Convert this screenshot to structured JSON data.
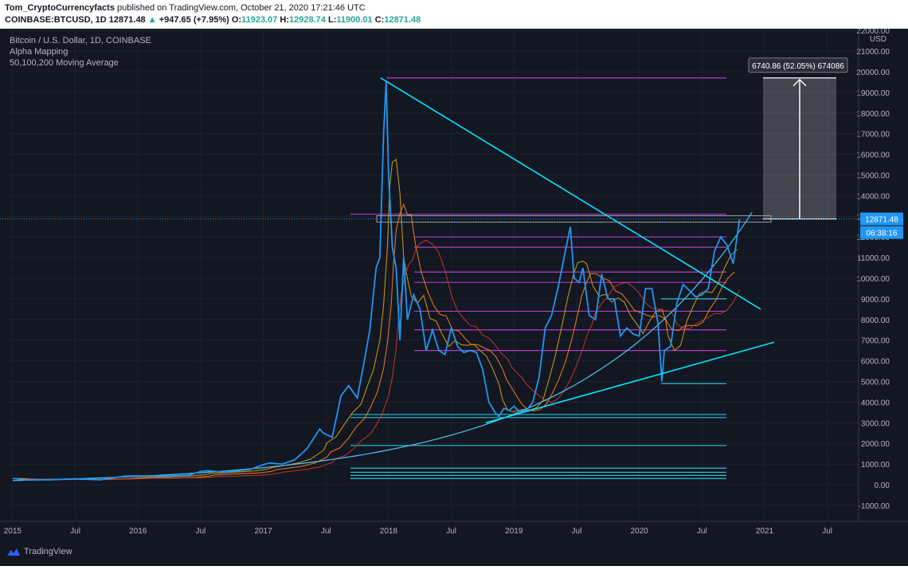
{
  "header": {
    "author": "Tom_CryptoCurrencyfacts",
    "published": "published on TradingView.com, October 21, 2020 17:21:46 UTC",
    "symbol": "COINBASE:BTCUSD, 1D",
    "price": "12871.48",
    "change": "+947.65 (+7.95%)",
    "open_label": "O:",
    "open": "11923.07",
    "high_label": "H:",
    "high": "12928.74",
    "low_label": "L:",
    "low": "11900.01",
    "close_label": "C:",
    "close": "12871.48"
  },
  "legend": {
    "title": "Bitcoin / U.S. Dollar, 1D, COINBASE",
    "indicator1": "Alpha Mapping",
    "indicator2": "50,100,200 Moving Average"
  },
  "footer": {
    "brand": "TradingView"
  },
  "colors": {
    "background": "#131722",
    "price": "#2196f3",
    "ma50": "#d4a017",
    "ma100": "#f57f17",
    "ma200": "#c0392b",
    "trendline": "#00e5ff",
    "levels_magenta": "#b03cc8",
    "levels_cyan": "#26c6da",
    "grid": "#1e2230"
  },
  "chart_data": {
    "type": "line",
    "x_ticks": [
      "2015",
      "Jul",
      "2016",
      "Jul",
      "2017",
      "Jul",
      "2018",
      "Jul",
      "2019",
      "Jul",
      "2020",
      "Jul",
      "2021",
      "Jul"
    ],
    "y_ticks": [
      "22000.00",
      "21000.00",
      "20000.00",
      "19000.00",
      "18000.00",
      "17000.00",
      "16000.00",
      "15000.00",
      "14000.00",
      "13000.00",
      "12000.00",
      "11000.00",
      "10000.00",
      "9000.00",
      "8000.00",
      "7000.00",
      "6000.00",
      "5000.00",
      "4000.00",
      "3000.00",
      "2000.00",
      "1000.00",
      "0.00",
      "-1000.00"
    ],
    "y_unit": "USD",
    "ylim": [
      -1000,
      22000
    ],
    "xlim": [
      2014.95,
      2021.75
    ],
    "current_price_label": "12871.48",
    "countdown_label": "06:38:16",
    "measure_label": "6740.86 (52.05%) 674086",
    "series": [
      {
        "x": [
          2015.0,
          2015.1,
          2015.3,
          2015.5,
          2015.7,
          2015.9,
          2016.0,
          2016.2,
          2016.4,
          2016.5,
          2016.55,
          2016.7,
          2016.9,
          2017.0,
          2017.05,
          2017.15,
          2017.25,
          2017.35,
          2017.45,
          2017.48,
          2017.55,
          2017.62,
          2017.68,
          2017.75,
          2017.8,
          2017.85,
          2017.9,
          2017.93,
          2017.96,
          2017.98,
          2018.0,
          2018.03,
          2018.06,
          2018.09,
          2018.12,
          2018.15,
          2018.2,
          2018.25,
          2018.3,
          2018.35,
          2018.4,
          2018.45,
          2018.5,
          2018.55,
          2018.6,
          2018.65,
          2018.7,
          2018.75,
          2018.8,
          2018.85,
          2018.88,
          2018.92,
          2018.96,
          2019.0,
          2019.05,
          2019.1,
          2019.15,
          2019.2,
          2019.25,
          2019.3,
          2019.35,
          2019.4,
          2019.45,
          2019.48,
          2019.52,
          2019.55,
          2019.6,
          2019.65,
          2019.7,
          2019.75,
          2019.8,
          2019.85,
          2019.9,
          2019.95,
          2020.0,
          2020.05,
          2020.1,
          2020.15,
          2020.18,
          2020.2,
          2020.25,
          2020.3,
          2020.35,
          2020.4,
          2020.45,
          2020.5,
          2020.55,
          2020.6,
          2020.65,
          2020.7,
          2020.75,
          2020.8
        ],
        "y": [
          310,
          230,
          240,
          280,
          240,
          420,
          430,
          410,
          450,
          640,
          680,
          600,
          750,
          970,
          1050,
          1000,
          1200,
          1750,
          2700,
          2500,
          2300,
          4300,
          4800,
          4200,
          5800,
          7500,
          10500,
          11000,
          17000,
          19500,
          15000,
          11500,
          10500,
          7000,
          11000,
          8000,
          9200,
          8500,
          6500,
          7500,
          6500,
          6300,
          7600,
          6700,
          6400,
          6500,
          6400,
          5600,
          4000,
          3500,
          3300,
          3700,
          3600,
          3800,
          3500,
          3600,
          4000,
          5200,
          7600,
          8200,
          9500,
          11000,
          12500,
          10000,
          9800,
          10500,
          8200,
          8000,
          10200,
          9000,
          9000,
          7200,
          7600,
          7300,
          7200,
          9500,
          9500,
          7800,
          5000,
          6500,
          6700,
          8800,
          9700,
          9400,
          9100,
          9200,
          9500,
          11300,
          12000,
          11600,
          10700,
          12871.48
        ]
      }
    ],
    "horizontal_levels": [
      {
        "y": 19700,
        "color": "magenta"
      },
      {
        "y": 13100,
        "color": "magenta"
      },
      {
        "y": 12000,
        "color": "magenta"
      },
      {
        "y": 11500,
        "color": "magenta"
      },
      {
        "y": 10300,
        "color": "magenta"
      },
      {
        "y": 9800,
        "color": "magenta"
      },
      {
        "y": 8400,
        "color": "magenta"
      },
      {
        "y": 7500,
        "color": "magenta"
      },
      {
        "y": 6500,
        "color": "magenta"
      },
      {
        "y": 9000,
        "color": "cyan"
      },
      {
        "y": 4900,
        "color": "cyan"
      },
      {
        "y": 3400,
        "color": "cyan"
      },
      {
        "y": 3250,
        "color": "cyan"
      },
      {
        "y": 1900,
        "color": "cyan"
      },
      {
        "y": 800,
        "color": "cyan"
      },
      {
        "y": 600,
        "color": "cyan"
      },
      {
        "y": 450,
        "color": "cyan"
      },
      {
        "y": 300,
        "color": "cyan"
      }
    ]
  }
}
